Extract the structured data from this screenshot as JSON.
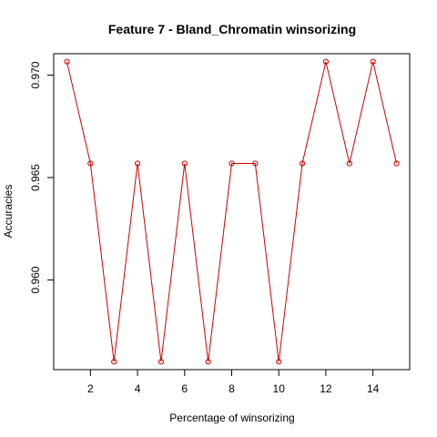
{
  "chart_data": {
    "type": "line",
    "title": "Feature 7 - Bland_Chromatin winsorizing",
    "xlabel": "Percentage of winsorizing",
    "ylabel": "Accuracies",
    "x": [
      1,
      2,
      3,
      4,
      5,
      6,
      7,
      8,
      9,
      10,
      11,
      12,
      13,
      14,
      15
    ],
    "series": [
      {
        "values": [
          0.97066,
          0.96569,
          0.95601,
          0.96569,
          0.95601,
          0.96569,
          0.95601,
          0.96569,
          0.96569,
          0.95601,
          0.96569,
          0.97066,
          0.96569,
          0.97066,
          0.96569
        ],
        "color": "#cc0000",
        "marker": "open-circle"
      }
    ],
    "xlim": [
      0.44,
      15.56
    ],
    "ylim": [
      0.955624,
      0.971046
    ],
    "x_ticks": [
      2,
      4,
      6,
      8,
      10,
      12,
      14
    ],
    "x_tick_labels": [
      "2",
      "4",
      "6",
      "8",
      "10",
      "12",
      "14"
    ],
    "y_ticks": [
      0.96,
      0.965,
      0.97
    ],
    "y_tick_labels": [
      "0.960",
      "0.965",
      "0.970"
    ],
    "grid": false,
    "legend": "none"
  }
}
